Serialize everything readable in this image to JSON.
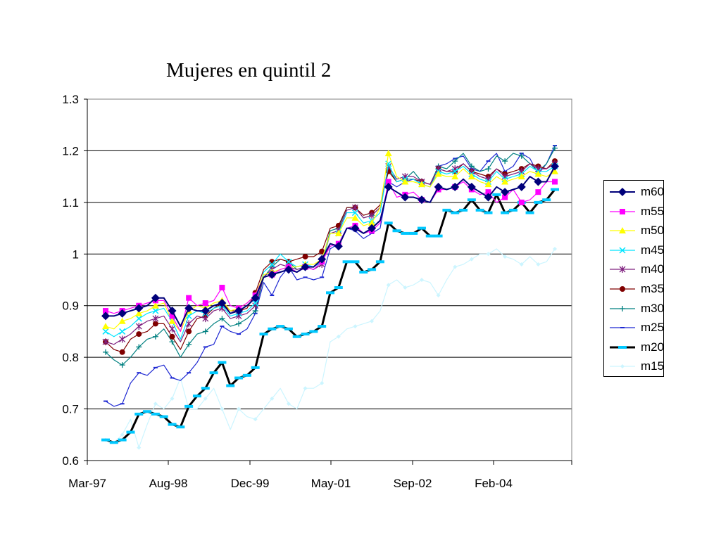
{
  "chart_data": {
    "type": "line",
    "title": "Mujeres en quintil 2",
    "xlabel": "",
    "ylabel": "",
    "ylim": [
      0.6,
      1.3
    ],
    "y_ticks": [
      "0.6",
      "0.7",
      "0.8",
      "0.9",
      "1",
      "1.1",
      "1.2",
      "1.3"
    ],
    "x_ticks": [
      "Mar-97",
      "Aug-98",
      "Dec-99",
      "May-01",
      "Sep-02",
      "Feb-04"
    ],
    "x_range": [
      "Mar-97",
      "Feb-05"
    ],
    "grid": "horizontal",
    "legend_position": "right",
    "series": [
      {
        "name": "m60",
        "color": "#00007a",
        "marker": "diamond",
        "values": [
          0.88,
          0.88,
          0.885,
          0.89,
          0.895,
          0.9,
          0.915,
          0.915,
          0.89,
          0.86,
          0.895,
          0.89,
          0.89,
          0.9,
          0.905,
          0.885,
          0.89,
          0.9,
          0.915,
          0.955,
          0.96,
          0.965,
          0.97,
          0.965,
          0.975,
          0.975,
          0.99,
          1.02,
          1.015,
          1.05,
          1.05,
          1.04,
          1.05,
          1.065,
          1.13,
          1.12,
          1.11,
          1.11,
          1.105,
          1.1,
          1.13,
          1.125,
          1.13,
          1.145,
          1.13,
          1.12,
          1.11,
          1.13,
          1.12,
          1.125,
          1.13,
          1.15,
          1.14,
          1.14,
          1.17
        ]
      },
      {
        "name": "m55",
        "color": "#ff00ff",
        "marker": "square",
        "values": [
          0.89,
          0.885,
          0.89,
          0.895,
          0.9,
          0.905,
          0.91,
          0.91,
          0.88,
          0.85,
          0.915,
          0.9,
          0.905,
          0.91,
          0.935,
          0.9,
          0.895,
          0.905,
          0.92,
          0.955,
          0.96,
          0.97,
          0.975,
          0.965,
          0.975,
          0.97,
          0.985,
          1.015,
          1.02,
          1.05,
          1.055,
          1.04,
          1.045,
          1.06,
          1.14,
          1.11,
          1.115,
          1.12,
          1.105,
          1.1,
          1.125,
          1.125,
          1.13,
          1.14,
          1.125,
          1.115,
          1.12,
          1.1,
          1.11,
          1.125,
          1.1,
          1.105,
          1.12,
          1.14,
          1.14
        ]
      },
      {
        "name": "m50",
        "color": "#ffff00",
        "marker": "triangle",
        "values": [
          0.86,
          0.855,
          0.87,
          0.875,
          0.885,
          0.89,
          0.9,
          0.905,
          0.87,
          0.85,
          0.89,
          0.9,
          0.895,
          0.905,
          0.91,
          0.89,
          0.895,
          0.905,
          0.92,
          0.96,
          0.965,
          0.97,
          0.975,
          0.975,
          0.98,
          0.98,
          0.99,
          1.04,
          1.04,
          1.07,
          1.07,
          1.055,
          1.06,
          1.09,
          1.195,
          1.15,
          1.14,
          1.14,
          1.135,
          1.13,
          1.155,
          1.15,
          1.15,
          1.165,
          1.15,
          1.14,
          1.135,
          1.15,
          1.14,
          1.145,
          1.15,
          1.16,
          1.155,
          1.15,
          1.16
        ]
      },
      {
        "name": "m45",
        "color": "#00e5ff",
        "marker": "x",
        "values": [
          0.85,
          0.84,
          0.85,
          0.86,
          0.875,
          0.885,
          0.89,
          0.895,
          0.87,
          0.835,
          0.88,
          0.89,
          0.885,
          0.895,
          0.9,
          0.88,
          0.885,
          0.89,
          0.905,
          0.965,
          0.98,
          1.0,
          0.985,
          0.975,
          0.98,
          0.975,
          0.985,
          1.04,
          1.04,
          1.08,
          1.08,
          1.06,
          1.065,
          1.08,
          1.175,
          1.14,
          1.145,
          1.145,
          1.135,
          1.13,
          1.16,
          1.155,
          1.16,
          1.17,
          1.155,
          1.145,
          1.14,
          1.16,
          1.145,
          1.15,
          1.155,
          1.17,
          1.16,
          1.16,
          1.17
        ]
      },
      {
        "name": "m40",
        "color": "#7f207f",
        "marker": "star",
        "values": [
          0.83,
          0.825,
          0.835,
          0.845,
          0.86,
          0.87,
          0.875,
          0.88,
          0.855,
          0.83,
          0.865,
          0.88,
          0.875,
          0.89,
          0.895,
          0.875,
          0.88,
          0.885,
          0.9,
          0.955,
          0.97,
          0.98,
          0.975,
          0.97,
          0.975,
          0.97,
          0.98,
          1.04,
          1.045,
          1.085,
          1.09,
          1.07,
          1.075,
          1.09,
          1.17,
          1.145,
          1.15,
          1.15,
          1.14,
          1.135,
          1.165,
          1.16,
          1.165,
          1.175,
          1.16,
          1.15,
          1.145,
          1.165,
          1.15,
          1.155,
          1.16,
          1.175,
          1.165,
          1.165,
          1.175
        ]
      },
      {
        "name": "m35",
        "color": "#800000",
        "marker": "circle",
        "values": [
          0.83,
          0.815,
          0.81,
          0.835,
          0.845,
          0.85,
          0.865,
          0.865,
          0.84,
          0.815,
          0.85,
          0.875,
          0.88,
          0.895,
          0.905,
          0.89,
          0.89,
          0.895,
          0.925,
          0.97,
          0.985,
          0.99,
          0.985,
          0.99,
          0.995,
          0.995,
          1.005,
          1.05,
          1.055,
          1.09,
          1.09,
          1.075,
          1.08,
          1.095,
          1.16,
          1.14,
          1.145,
          1.145,
          1.14,
          1.135,
          1.165,
          1.16,
          1.16,
          1.175,
          1.16,
          1.155,
          1.15,
          1.165,
          1.155,
          1.16,
          1.165,
          1.175,
          1.17,
          1.165,
          1.18
        ]
      },
      {
        "name": "m30",
        "color": "#008080",
        "marker": "plus",
        "values": [
          0.81,
          0.795,
          0.785,
          0.8,
          0.82,
          0.835,
          0.84,
          0.855,
          0.83,
          0.8,
          0.825,
          0.845,
          0.85,
          0.865,
          0.875,
          0.86,
          0.865,
          0.875,
          0.89,
          0.955,
          0.975,
          0.99,
          0.985,
          0.97,
          0.975,
          0.97,
          0.985,
          1.045,
          1.05,
          1.09,
          1.09,
          1.07,
          1.075,
          1.09,
          1.165,
          1.14,
          1.145,
          1.16,
          1.14,
          1.135,
          1.17,
          1.165,
          1.18,
          1.195,
          1.17,
          1.16,
          1.165,
          1.19,
          1.18,
          1.195,
          1.19,
          1.175,
          1.16,
          1.175,
          1.205
        ]
      },
      {
        "name": "m25",
        "color": "#1e28d2",
        "marker": "dash",
        "values": [
          0.715,
          0.705,
          0.71,
          0.75,
          0.77,
          0.765,
          0.78,
          0.785,
          0.76,
          0.755,
          0.77,
          0.79,
          0.82,
          0.825,
          0.86,
          0.85,
          0.845,
          0.855,
          0.885,
          0.945,
          0.92,
          0.955,
          0.975,
          0.95,
          0.955,
          0.95,
          0.955,
          1.01,
          1.02,
          1.05,
          1.045,
          1.03,
          1.04,
          1.05,
          1.14,
          1.13,
          1.14,
          1.145,
          1.135,
          1.13,
          1.17,
          1.175,
          1.185,
          1.19,
          1.165,
          1.16,
          1.18,
          1.195,
          1.16,
          1.17,
          1.195,
          1.185,
          1.155,
          1.175,
          1.21
        ]
      },
      {
        "name": "m20",
        "color": "#000000",
        "marker": "thick-dash",
        "values": [
          0.64,
          0.635,
          0.64,
          0.655,
          0.69,
          0.695,
          0.69,
          0.685,
          0.67,
          0.665,
          0.705,
          0.725,
          0.74,
          0.77,
          0.79,
          0.745,
          0.76,
          0.765,
          0.78,
          0.845,
          0.855,
          0.86,
          0.855,
          0.84,
          0.845,
          0.85,
          0.86,
          0.925,
          0.935,
          0.985,
          0.985,
          0.965,
          0.97,
          0.985,
          1.06,
          1.045,
          1.04,
          1.04,
          1.05,
          1.035,
          1.035,
          1.085,
          1.08,
          1.085,
          1.105,
          1.085,
          1.08,
          1.115,
          1.08,
          1.085,
          1.1,
          1.08,
          1.1,
          1.105,
          1.125
        ]
      },
      {
        "name": "m15",
        "color": "#ccf5ff",
        "marker": "diamond-small",
        "values": [
          0.64,
          0.635,
          0.65,
          0.68,
          0.625,
          0.67,
          0.71,
          0.7,
          0.72,
          0.76,
          0.7,
          0.7,
          0.72,
          0.74,
          0.7,
          0.66,
          0.7,
          0.685,
          0.68,
          0.7,
          0.72,
          0.74,
          0.71,
          0.7,
          0.74,
          0.74,
          0.75,
          0.83,
          0.84,
          0.855,
          0.86,
          0.865,
          0.87,
          0.89,
          0.94,
          0.95,
          0.935,
          0.94,
          0.95,
          0.945,
          0.92,
          0.95,
          0.975,
          0.98,
          0.99,
          1.0,
          1.0,
          1.01,
          0.995,
          0.99,
          0.98,
          0.995,
          0.98,
          0.985,
          1.01
        ]
      }
    ]
  }
}
